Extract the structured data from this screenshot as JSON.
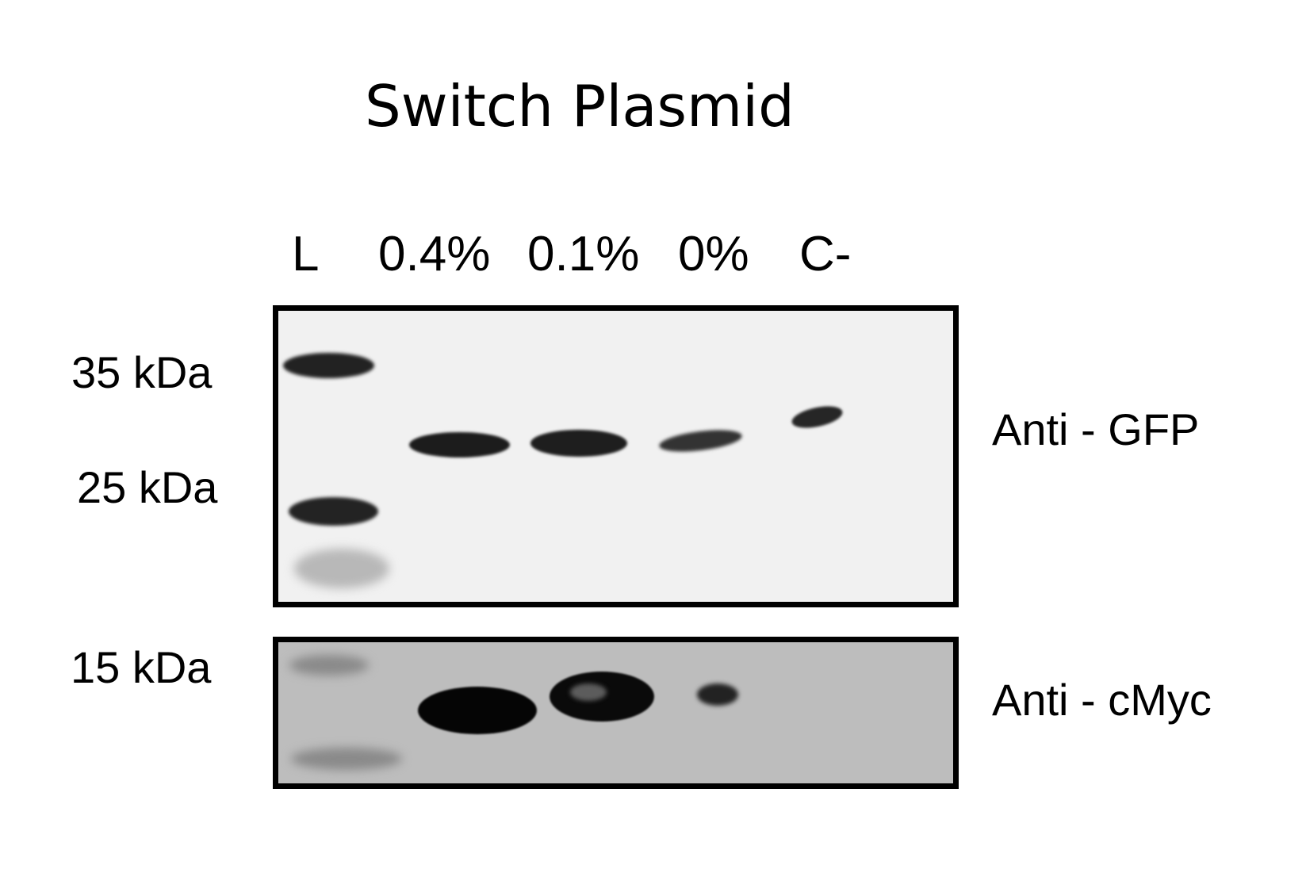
{
  "figure": {
    "title": "Switch Plasmid",
    "lanes": [
      {
        "id": "ladder",
        "label": "L"
      },
      {
        "id": "lane-0-4",
        "label": "0.4%"
      },
      {
        "id": "lane-0-1",
        "label": "0.1%"
      },
      {
        "id": "lane-0",
        "label": "0%"
      },
      {
        "id": "lane-neg",
        "label": "C-"
      }
    ],
    "markers": {
      "kda35": "35 kDa",
      "kda25": "25 kDa",
      "kda15": "15 kDa"
    },
    "antibodies": {
      "gfp": "Anti - GFP",
      "cmyc": "Anti - cMyc"
    }
  },
  "colors": {
    "band": "#1c1c1c",
    "gfp_background": "#f1f1f1",
    "cmyc_background": "#bdbdbd",
    "frame": "#000000"
  }
}
